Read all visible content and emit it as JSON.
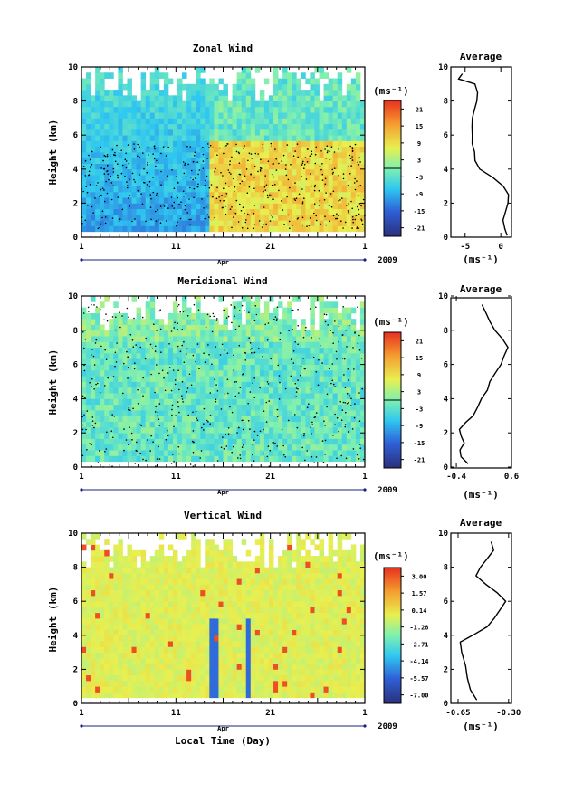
{
  "figure": {
    "xlabel": "Local Time (Day)",
    "month_label": "Apr",
    "year_label": "2009",
    "x_tick_labels": [
      "1",
      "11",
      "21",
      "1"
    ],
    "y_tick_labels": [
      "0",
      "2",
      "4",
      "6",
      "8",
      "10"
    ],
    "ylabel": "Height (km)",
    "unit_label": "(ms⁻¹)",
    "profile_title": "Average"
  },
  "chart_data": [
    {
      "type": "heatmap",
      "title": "Zonal Wind",
      "xlabel": "",
      "ylabel": "Height (km)",
      "x_range_days": [
        "2009-04-01",
        "2009-05-01"
      ],
      "ylim": [
        0,
        10
      ],
      "colorbar": {
        "unit": "(ms⁻¹)",
        "tick_labels": [
          "21",
          "15",
          "9",
          "3",
          "-3",
          "-9",
          "-15",
          "-21"
        ],
        "range": [
          -24,
          24
        ]
      },
      "profile": {
        "title": "Average",
        "xlim": [
          -7,
          1.5
        ],
        "x_tick_labels": [
          "-5",
          "0"
        ],
        "xlabel": "(ms⁻¹)",
        "height": [
          0.1,
          0.5,
          1.0,
          1.5,
          2.0,
          2.5,
          3.0,
          3.5,
          4.0,
          4.5,
          5.0,
          5.5,
          6.0,
          6.5,
          7.0,
          7.5,
          8.0,
          8.5,
          9.0,
          9.3,
          9.6
        ],
        "value": [
          0.8,
          0.6,
          0.4,
          0.6,
          1.0,
          1.2,
          0.4,
          -1.0,
          -3.0,
          -3.5,
          -3.8,
          -4.0,
          -4.1,
          -4.0,
          -3.9,
          -3.6,
          -3.4,
          -3.2,
          -3.6,
          -6.0,
          -5.4
        ]
      }
    },
    {
      "type": "heatmap",
      "title": "Meridional Wind",
      "xlabel": "",
      "ylabel": "Height (km)",
      "x_range_days": [
        "2009-04-01",
        "2009-05-01"
      ],
      "ylim": [
        0,
        10
      ],
      "colorbar": {
        "unit": "(ms⁻¹)",
        "tick_labels": [
          "21",
          "15",
          "9",
          "3",
          "-3",
          "-9",
          "-15",
          "-21"
        ],
        "range": [
          -24,
          24
        ]
      },
      "profile": {
        "title": "Average",
        "xlim": [
          -0.5,
          0.6
        ],
        "x_tick_labels": [
          "-0.4",
          "0.6"
        ],
        "xlabel": "(ms⁻¹)",
        "height": [
          0.2,
          0.6,
          1.0,
          1.4,
          1.8,
          2.2,
          2.6,
          3.0,
          3.5,
          4.0,
          4.5,
          5.0,
          5.5,
          6.0,
          6.5,
          7.0,
          7.5,
          8.0,
          8.5,
          9.0,
          9.5
        ],
        "value": [
          -0.2,
          -0.3,
          -0.35,
          -0.25,
          -0.3,
          -0.35,
          -0.25,
          -0.1,
          0.0,
          0.05,
          0.15,
          0.2,
          0.3,
          0.4,
          0.45,
          0.55,
          0.45,
          0.3,
          0.2,
          0.15,
          0.05
        ]
      }
    },
    {
      "type": "heatmap",
      "title": "Vertical Wind",
      "xlabel": "Local Time (Day)",
      "ylabel": "Height (km)",
      "x_range_days": [
        "2009-04-01",
        "2009-05-01"
      ],
      "ylim": [
        0,
        10
      ],
      "colorbar": {
        "unit": "(ms⁻¹)",
        "tick_labels": [
          "3.00",
          "1.57",
          "0.14",
          "-1.28",
          "-2.71",
          "-4.14",
          "-5.57",
          "-7.00"
        ],
        "range": [
          -8.0,
          4.0
        ]
      },
      "profile": {
        "title": "Average",
        "xlim": [
          -0.7,
          -0.28
        ],
        "x_tick_labels": [
          "-0.65",
          "-0.30"
        ],
        "xlabel": "(ms⁻¹)",
        "height": [
          0.2,
          0.8,
          1.5,
          2.2,
          3.0,
          3.6,
          4.0,
          4.5,
          5.0,
          5.5,
          6.0,
          6.5,
          7.0,
          7.5,
          8.0,
          8.5,
          9.0,
          9.5
        ],
        "value": [
          -0.52,
          -0.56,
          -0.58,
          -0.6,
          -0.62,
          -0.64,
          -0.55,
          -0.45,
          -0.4,
          -0.36,
          -0.32,
          -0.38,
          -0.46,
          -0.52,
          -0.5,
          -0.45,
          -0.4,
          -0.42
        ]
      }
    }
  ]
}
